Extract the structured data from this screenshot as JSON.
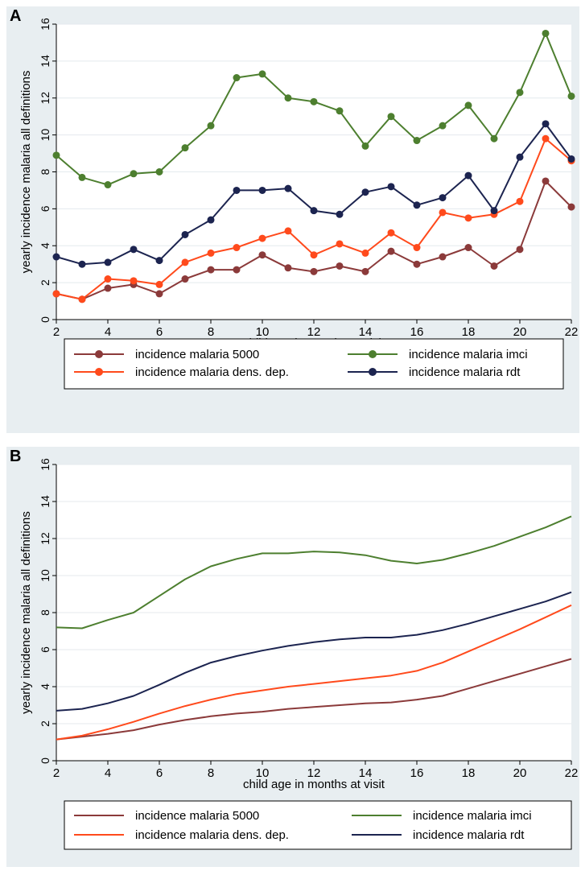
{
  "chart_data": [
    {
      "panel": "A",
      "type": "line",
      "markers": true,
      "xlabel": "child age in months at visit",
      "ylabel": "yearly incidence malaria all definitions",
      "xlim": [
        2,
        22
      ],
      "ylim": [
        0,
        16
      ],
      "xticks": [
        "2",
        "4",
        "6",
        "8",
        "10",
        "12",
        "14",
        "16",
        "18",
        "20",
        "22"
      ],
      "yticks": [
        "0",
        "2",
        "4",
        "6",
        "8",
        "10",
        "12",
        "14",
        "16"
      ],
      "grid": "horizontal",
      "legend_position": "bottom",
      "x": [
        2,
        3,
        4,
        5,
        6,
        7,
        8,
        9,
        10,
        11,
        12,
        13,
        14,
        15,
        16,
        17,
        18,
        19,
        20,
        21,
        22
      ],
      "series": [
        {
          "name": "incidence malaria 5000",
          "color": "#8b3a3a",
          "values": [
            1.4,
            1.1,
            1.7,
            1.9,
            1.4,
            2.2,
            2.7,
            2.7,
            3.5,
            2.8,
            2.6,
            2.9,
            2.6,
            3.7,
            3.0,
            3.4,
            3.9,
            2.9,
            3.8,
            7.5,
            6.1
          ]
        },
        {
          "name": "incidence malaria imci",
          "color": "#4d7f2f",
          "values": [
            8.9,
            7.7,
            7.3,
            7.9,
            8.0,
            9.3,
            10.5,
            13.1,
            13.3,
            12.0,
            11.8,
            11.3,
            9.4,
            11.0,
            9.7,
            10.5,
            11.6,
            9.8,
            12.3,
            15.5,
            12.1
          ]
        },
        {
          "name": "incidence malaria dens. dep.",
          "color": "#ff4a1c",
          "values": [
            1.4,
            1.1,
            2.2,
            2.1,
            1.9,
            3.1,
            3.6,
            3.9,
            4.4,
            4.8,
            3.5,
            4.1,
            3.6,
            4.7,
            3.9,
            5.8,
            5.5,
            5.7,
            6.4,
            9.8,
            8.6
          ]
        },
        {
          "name": "incidence malaria rdt",
          "color": "#1c2450",
          "values": [
            3.4,
            3.0,
            3.1,
            3.8,
            3.2,
            4.6,
            5.4,
            7.0,
            7.0,
            7.1,
            5.9,
            5.7,
            6.9,
            7.2,
            6.2,
            6.6,
            7.8,
            5.9,
            8.8,
            10.6,
            8.7
          ]
        }
      ]
    },
    {
      "panel": "B",
      "type": "line",
      "markers": false,
      "xlabel": "child age in months at visit",
      "ylabel": "yearly incidence malaria all definitions",
      "xlim": [
        2,
        22
      ],
      "ylim": [
        0,
        16
      ],
      "xticks": [
        "2",
        "4",
        "6",
        "8",
        "10",
        "12",
        "14",
        "16",
        "18",
        "20",
        "22"
      ],
      "yticks": [
        "0",
        "2",
        "4",
        "6",
        "8",
        "10",
        "12",
        "14",
        "16"
      ],
      "grid": "horizontal",
      "legend_position": "bottom",
      "x": [
        2,
        3,
        4,
        5,
        6,
        7,
        8,
        9,
        10,
        11,
        12,
        13,
        14,
        15,
        16,
        17,
        18,
        19,
        20,
        21,
        22
      ],
      "series": [
        {
          "name": "incidence malaria 5000",
          "color": "#8b3a3a",
          "values": [
            1.15,
            1.3,
            1.45,
            1.65,
            1.95,
            2.2,
            2.4,
            2.55,
            2.65,
            2.8,
            2.9,
            3.0,
            3.1,
            3.15,
            3.3,
            3.5,
            3.9,
            4.3,
            4.7,
            5.1,
            5.5
          ]
        },
        {
          "name": "incidence malaria imci",
          "color": "#4d7f2f",
          "values": [
            7.2,
            7.15,
            7.6,
            8.0,
            8.9,
            9.8,
            10.5,
            10.9,
            11.2,
            11.2,
            11.3,
            11.25,
            11.1,
            10.8,
            10.65,
            10.85,
            11.2,
            11.6,
            12.1,
            12.6,
            13.2
          ]
        },
        {
          "name": "incidence malaria dens. dep.",
          "color": "#ff4a1c",
          "values": [
            1.15,
            1.35,
            1.7,
            2.1,
            2.55,
            2.95,
            3.3,
            3.6,
            3.8,
            4.0,
            4.15,
            4.3,
            4.45,
            4.6,
            4.85,
            5.3,
            5.9,
            6.5,
            7.1,
            7.75,
            8.4
          ]
        },
        {
          "name": "incidence malaria rdt",
          "color": "#1c2450",
          "values": [
            2.7,
            2.8,
            3.1,
            3.5,
            4.1,
            4.75,
            5.3,
            5.65,
            5.95,
            6.2,
            6.4,
            6.55,
            6.65,
            6.65,
            6.8,
            7.05,
            7.4,
            7.8,
            8.2,
            8.6,
            9.1
          ]
        }
      ]
    }
  ]
}
